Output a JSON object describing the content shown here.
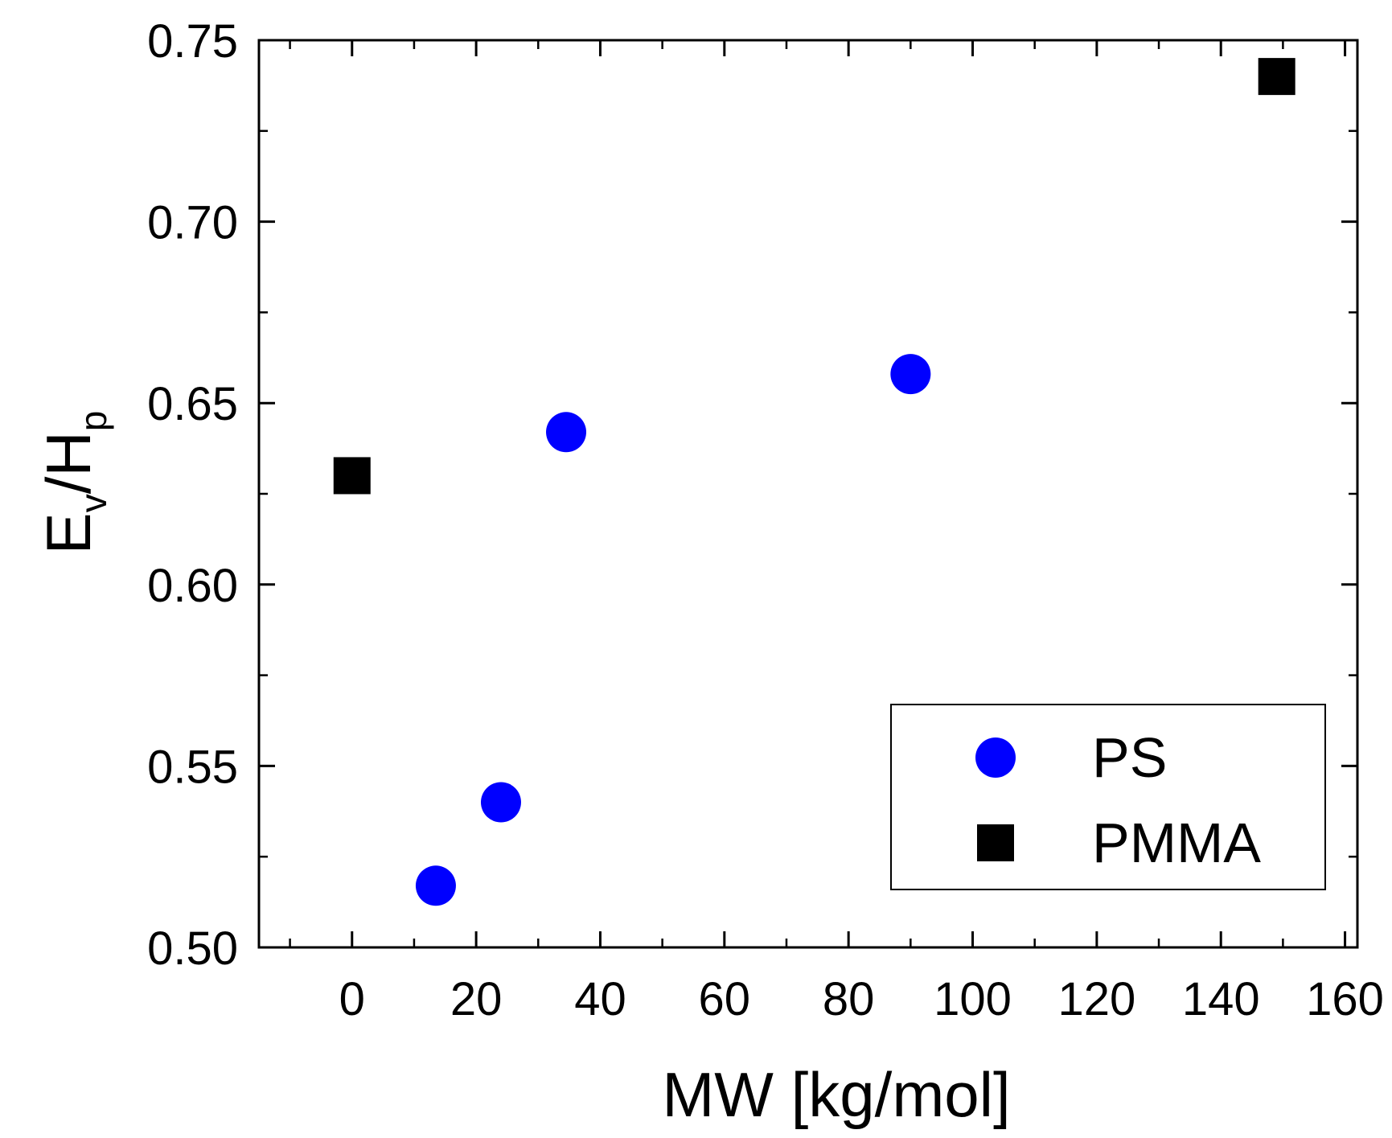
{
  "chart_data": {
    "type": "scatter",
    "title": "",
    "xlabel": "MW [kg/mol]",
    "ylabel": {
      "main1": "E",
      "sub1": "v",
      "main2": "/H",
      "sub2": "p"
    },
    "xlim": [
      -15,
      162
    ],
    "ylim": [
      0.5,
      0.75
    ],
    "xticks": [
      0,
      20,
      40,
      60,
      80,
      100,
      120,
      140,
      160
    ],
    "xtick_labels": [
      "0",
      "20",
      "40",
      "60",
      "80",
      "100",
      "120",
      "140",
      "160"
    ],
    "yticks": [
      0.5,
      0.55,
      0.6,
      0.65,
      0.7,
      0.75
    ],
    "ytick_labels": [
      "0.50",
      "0.55",
      "0.60",
      "0.65",
      "0.70",
      "0.75"
    ],
    "legend_position": "lower-right",
    "series": [
      {
        "name": "PS",
        "marker": "circle",
        "color": "#0000ff",
        "points": [
          {
            "x": 13.5,
            "y": 0.517
          },
          {
            "x": 24,
            "y": 0.54
          },
          {
            "x": 34.5,
            "y": 0.642
          },
          {
            "x": 90,
            "y": 0.658
          }
        ]
      },
      {
        "name": "PMMA",
        "marker": "square",
        "color": "#000000",
        "points": [
          {
            "x": 0,
            "y": 0.63
          },
          {
            "x": 149,
            "y": 0.74
          }
        ]
      }
    ]
  }
}
